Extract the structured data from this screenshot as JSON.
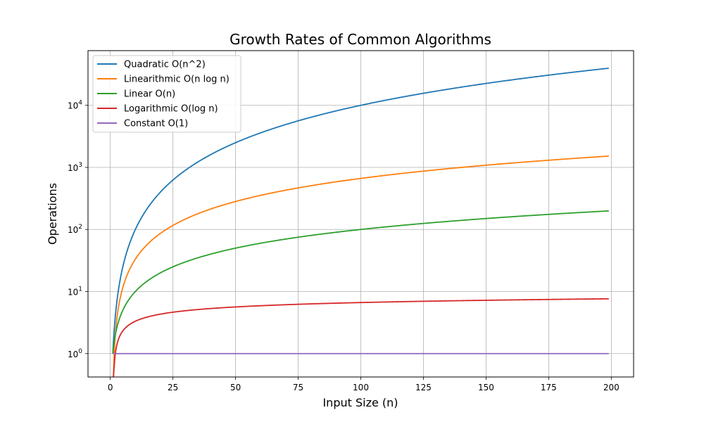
{
  "chart_data": {
    "type": "line",
    "title": "Growth Rates of Common Algorithms",
    "xlabel": "Input Size (n)",
    "ylabel": "Operations",
    "xscale": "linear",
    "yscale": "log",
    "xlim": [
      -8.9,
      208.9
    ],
    "ylim": [
      0.42,
      76000
    ],
    "xticks": [
      0,
      25,
      50,
      75,
      100,
      125,
      150,
      175,
      200
    ],
    "xtick_labels": [
      "0",
      "25",
      "50",
      "75",
      "100",
      "125",
      "150",
      "175",
      "200"
    ],
    "yticks": [
      1,
      10,
      100,
      1000,
      10000
    ],
    "ytick_labels": [
      {
        "base": "10",
        "exp": "0"
      },
      {
        "base": "10",
        "exp": "1"
      },
      {
        "base": "10",
        "exp": "2"
      },
      {
        "base": "10",
        "exp": "3"
      },
      {
        "base": "10",
        "exp": "4"
      }
    ],
    "grid": true,
    "legend_position": "top-left",
    "x_range": [
      1,
      199
    ],
    "series": [
      {
        "name": "Quadratic O(n^2)",
        "formula": "n^2",
        "color": "#1f77b4",
        "sample_values": {
          "1": 1,
          "50": 2500,
          "100": 10000,
          "150": 22500,
          "199": 39601
        }
      },
      {
        "name": "Linearithmic O(n log n)",
        "formula": "n*log2(n)",
        "color": "#ff7f0e",
        "sample_values": {
          "2": 2,
          "50": 282,
          "100": 664,
          "150": 1084,
          "199": 1519
        }
      },
      {
        "name": "Linear O(n)",
        "formula": "n",
        "color": "#2ca02c",
        "sample_values": {
          "1": 1,
          "50": 50,
          "100": 100,
          "150": 150,
          "199": 199
        }
      },
      {
        "name": "Logarithmic O(log n)",
        "formula": "log2(n)",
        "color": "#d62728",
        "sample_values": {
          "2": 1,
          "50": 5.64,
          "100": 6.64,
          "150": 7.23,
          "199": 7.64
        }
      },
      {
        "name": "Constant O(1)",
        "formula": "1",
        "color": "#9467bd",
        "sample_values": {
          "1": 1,
          "100": 1,
          "199": 1
        }
      }
    ]
  }
}
